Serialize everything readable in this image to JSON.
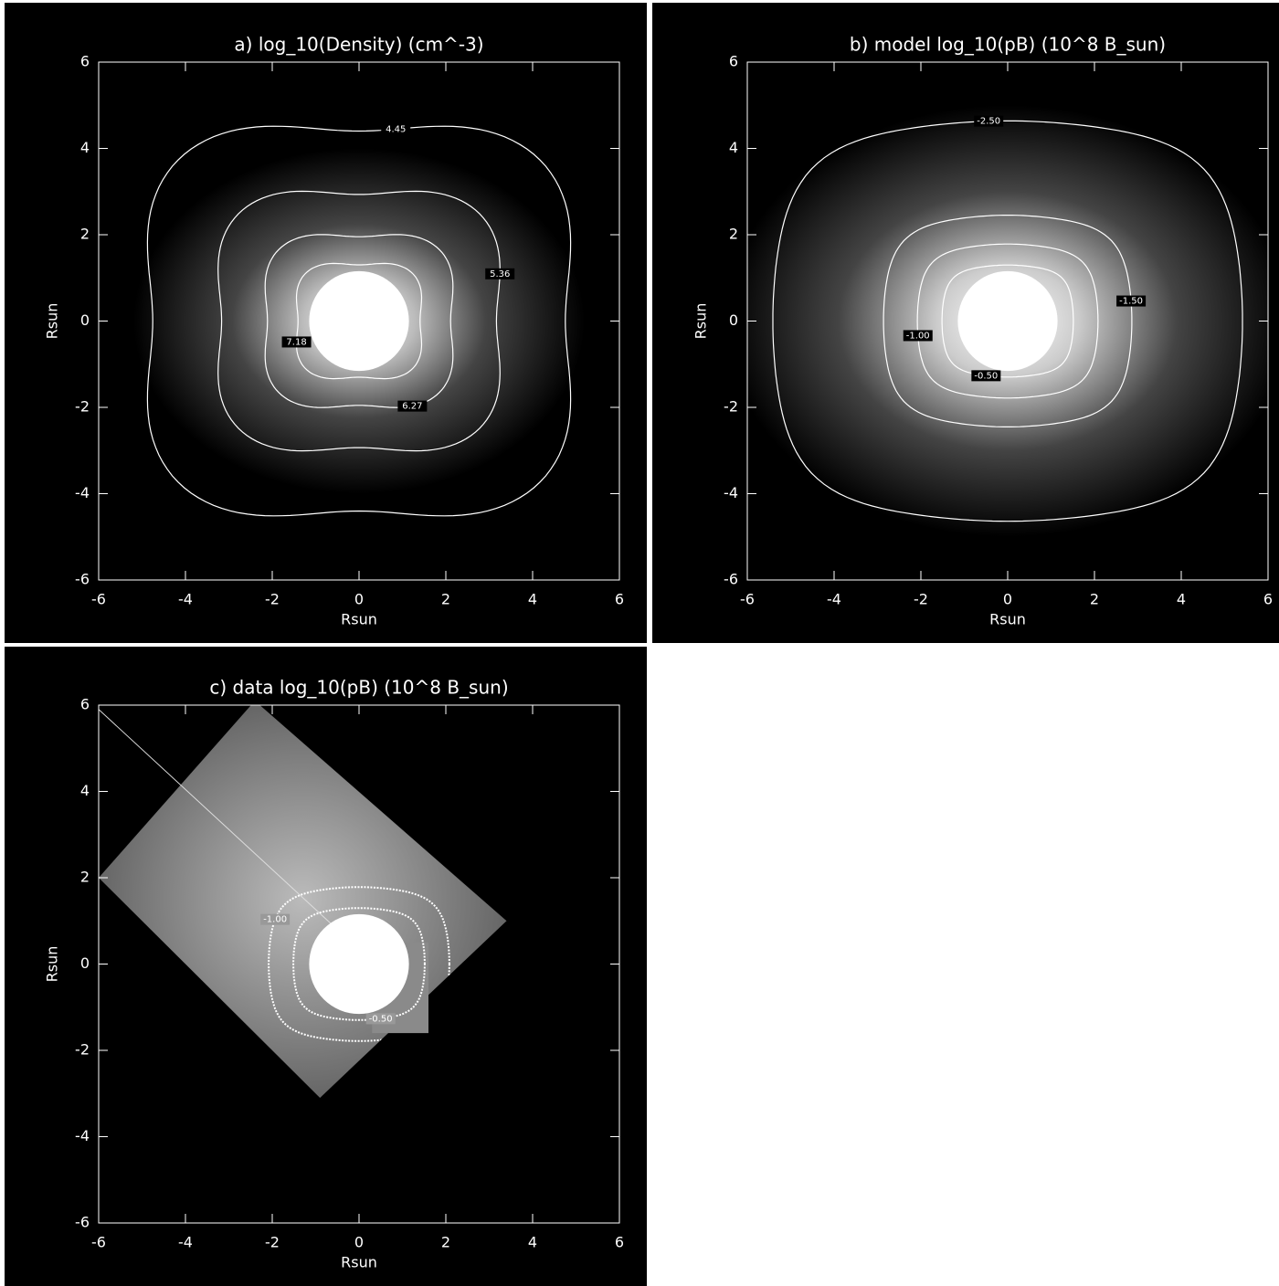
{
  "chart_data": [
    {
      "type": "contour",
      "title": "a) log_10(Density) (cm^-3)",
      "xlabel": "Rsun",
      "ylabel": "Rsun",
      "xlim": [
        -6,
        6
      ],
      "ylim": [
        -6,
        6
      ],
      "xticks": [
        -6,
        -4,
        -2,
        0,
        2,
        4,
        6
      ],
      "yticks": [
        -6,
        -4,
        -2,
        0,
        2,
        4,
        6
      ],
      "levels": [
        4.45,
        5.36,
        6.27,
        7.18
      ]
    },
    {
      "type": "contour",
      "title": "b) model log_10(pB) (10^8 B_sun)",
      "xlabel": "Rsun",
      "ylabel": "Rsun",
      "xlim": [
        -6,
        6
      ],
      "ylim": [
        -6,
        6
      ],
      "xticks": [
        -6,
        -4,
        -2,
        0,
        2,
        4,
        6
      ],
      "yticks": [
        -6,
        -4,
        -2,
        0,
        2,
        4,
        6
      ],
      "levels": [
        {
          "value": -2.5,
          "label": "-2.50"
        },
        {
          "value": -1.5,
          "label": "-1.50"
        },
        {
          "value": -1,
          "label": "-1.00"
        },
        {
          "value": -0.5,
          "label": "-0.50"
        }
      ]
    },
    {
      "type": "contour",
      "title": "c) data log_10(pB) (10^8 B_sun)",
      "xlabel": "Rsun",
      "ylabel": "Rsun",
      "xlim": [
        -6,
        6
      ],
      "ylim": [
        -6,
        6
      ],
      "xticks": [
        -6,
        -4,
        -2,
        0,
        2,
        4,
        6
      ],
      "yticks": [
        -6,
        -4,
        -2,
        0,
        2,
        4,
        6
      ],
      "levels": [
        {
          "value": -1,
          "label": "-1.00"
        },
        {
          "value": -0.5,
          "label": "-0.50"
        }
      ]
    }
  ]
}
